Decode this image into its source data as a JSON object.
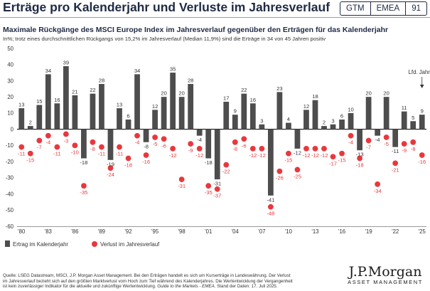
{
  "header": {
    "title": "Erträge pro Kalenderjahr und Verluste im Jahresverlauf",
    "tags": [
      "GTM",
      "EMEA",
      "91"
    ]
  },
  "chart_data": {
    "type": "bar",
    "title": "Maximale Rückgänge des MSCI Europe Index im Jahresverlauf gegenüber den Erträgen für das Kalenderjahr",
    "subtitle": "In%; trotz eines durchschnittlichen Rückgangs von 15,2% im Jahresverlauf (Median 11,9%) sind die Erträge in 34 von 45 Jahren positiv",
    "years": [
      1980,
      1981,
      1982,
      1983,
      1984,
      1985,
      1986,
      1987,
      1988,
      1989,
      1990,
      1991,
      1992,
      1993,
      1994,
      1995,
      1996,
      1997,
      1998,
      1999,
      2000,
      2001,
      2002,
      2003,
      2004,
      2005,
      2006,
      2007,
      2008,
      2009,
      2010,
      2011,
      2012,
      2013,
      2014,
      2015,
      2016,
      2017,
      2018,
      2019,
      2020,
      2021,
      2022,
      2023,
      2024,
      2025
    ],
    "series": [
      {
        "name": "Ertrag im Kalenderjahr",
        "type": "bar",
        "color": "#4d4d4d",
        "values": [
          13,
          2,
          15,
          34,
          16,
          39,
          21,
          -18,
          22,
          28,
          -19,
          13,
          6,
          34,
          -8,
          12,
          20,
          35,
          20,
          28,
          -4,
          -18,
          -31,
          17,
          9,
          22,
          16,
          3,
          -41,
          23,
          4,
          -12,
          12,
          18,
          2,
          3,
          6,
          10,
          -13,
          20,
          -4,
          20,
          -11,
          11,
          5,
          9
        ]
      },
      {
        "name": "Verlust im Jahresverlauf",
        "type": "scatter",
        "color": "#e8383d",
        "values": [
          -11,
          -15,
          -7,
          -4,
          -11,
          -3,
          -10,
          -35,
          -8,
          -11,
          -24,
          -11,
          -18,
          -4,
          -16,
          -5,
          -6,
          -12,
          -31,
          -9,
          -12,
          -35,
          -37,
          -22,
          -8,
          -6,
          -12,
          -12,
          -48,
          -26,
          -15,
          -25,
          -12,
          -12,
          -12,
          -17,
          -15,
          -4,
          -18,
          -7,
          -34,
          -5,
          -21,
          -9,
          -8,
          -16
        ]
      }
    ],
    "yaxis": {
      "min": -60,
      "max": 50,
      "step": 10,
      "ticks": [
        "50",
        "40",
        "30",
        "20",
        "10",
        "0",
        "-10",
        "-20",
        "-30",
        "-40",
        "-50",
        "-60"
      ]
    },
    "xaxis": {
      "ticks": [
        {
          "year": 1980,
          "label": "'80"
        },
        {
          "year": 1983,
          "label": "'83"
        },
        {
          "year": 1986,
          "label": "'86"
        },
        {
          "year": 1989,
          "label": "'89"
        },
        {
          "year": 1992,
          "label": "'92"
        },
        {
          "year": 1995,
          "label": "'95"
        },
        {
          "year": 1998,
          "label": "'98"
        },
        {
          "year": 2001,
          "label": "'01"
        },
        {
          "year": 2004,
          "label": "'04"
        },
        {
          "year": 2007,
          "label": "'07"
        },
        {
          "year": 2010,
          "label": "'10"
        },
        {
          "year": 2013,
          "label": "'13"
        },
        {
          "year": 2016,
          "label": "'16"
        },
        {
          "year": 2019,
          "label": "'19"
        },
        {
          "year": 2022,
          "label": "'22"
        },
        {
          "year": 2025,
          "label": "'25"
        }
      ]
    },
    "annotation": {
      "text": "Lfd. Jahr",
      "year": 2025
    },
    "legend": [
      "Ertrag im Kalenderjahr",
      "Verlust im Jahresverlauf"
    ],
    "legend_position": "bottom-left"
  },
  "footnote": {
    "text1": "Quelle: LSEG Datastream, MSCI, J.P. Morgan Asset Management. Bei den Erträgen handelt es sich um Kurserträge in Landeswährung. Der Verlust im Jahresverlauf bezieht sich auf den größten Marktverlust vom Hoch zum Tief während des Kalenderjahres. Die Wertentwicklung der Vergangenheit ist kein zuverlässiger Indikator für die aktuelle und zukünftige Wertentwicklung. ",
    "text2": "Guide to the Markets - EMEA",
    "text3": ". Stand der Daten: 17. Juli 2025."
  },
  "logo": {
    "line1": "J.P.Morgan",
    "line2": "ASSET MANAGEMENT"
  }
}
